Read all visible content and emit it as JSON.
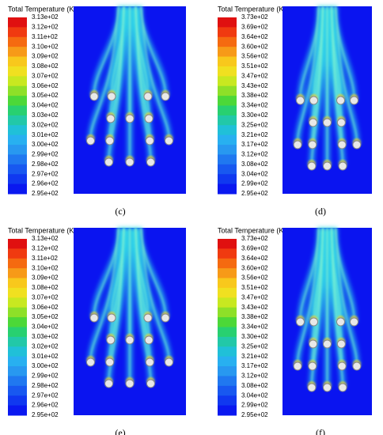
{
  "panels": [
    {
      "title": "Total Temperature (K)",
      "ticks": [
        "3.13e+02",
        "3.12e+02",
        "3.11e+02",
        "3.10e+02",
        "3.09e+02",
        "3.08e+02",
        "3.07e+02",
        "3.06e+02",
        "3.05e+02",
        "3.04e+02",
        "3.03e+02",
        "3.02e+02",
        "3.01e+02",
        "3.00e+02",
        "2.99e+02",
        "2.98e+02",
        "2.97e+02",
        "2.96e+02",
        "2.95e+02"
      ],
      "label": "(c)"
    },
    {
      "title": "Total Temperature (K)",
      "ticks": [
        "3.73e+02",
        "3.69e+02",
        "3.64e+02",
        "3.60e+02",
        "3.56e+02",
        "3.51e+02",
        "3.47e+02",
        "3.43e+02",
        "3.38e+02",
        "3.34e+02",
        "3.30e+02",
        "3.25e+02",
        "3.21e+02",
        "3.17e+02",
        "3.12e+02",
        "3.08e+02",
        "3.04e+02",
        "2.99e+02",
        "2.95e+02"
      ],
      "label": "(d)"
    },
    {
      "title": "Total Temperature (K)",
      "ticks": [
        "3.13e+02",
        "3.12e+02",
        "3.11e+02",
        "3.10e+02",
        "3.09e+02",
        "3.08e+02",
        "3.07e+02",
        "3.06e+02",
        "3.05e+02",
        "3.04e+02",
        "3.03e+02",
        "3.02e+02",
        "3.01e+02",
        "3.00e+02",
        "2.99e+02",
        "2.98e+02",
        "2.97e+02",
        "2.96e+02",
        "2.95e+02"
      ],
      "label": "(e)"
    },
    {
      "title": "Total Temperature (K)",
      "ticks": [
        "3.73e+02",
        "3.69e+02",
        "3.64e+02",
        "3.60e+02",
        "3.56e+02",
        "3.51e+02",
        "3.47e+02",
        "3.43e+02",
        "3.38e+02",
        "3.34e+02",
        "3.30e+02",
        "3.25e+02",
        "3.21e+02",
        "3.17e+02",
        "3.12e+02",
        "3.08e+02",
        "3.04e+02",
        "2.99e+02",
        "2.95e+02"
      ],
      "label": "(f)"
    }
  ]
}
